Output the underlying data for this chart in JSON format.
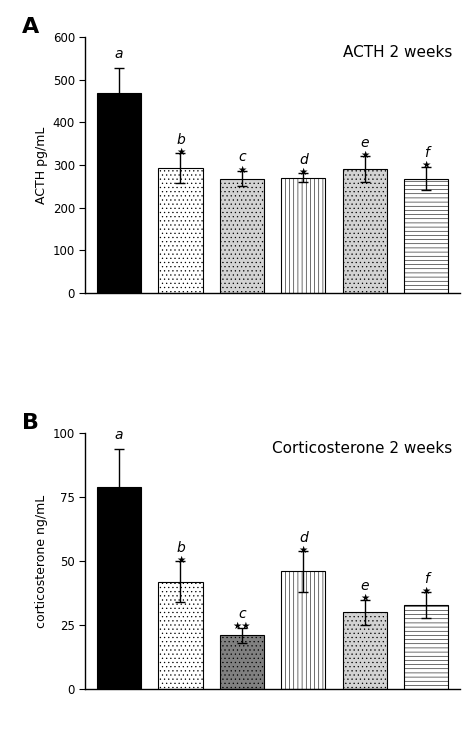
{
  "panel_A": {
    "title": "ACTH 2 weeks",
    "ylabel": "ACTH pg/mL",
    "ylim": [
      0,
      600
    ],
    "yticks": [
      0,
      100,
      200,
      300,
      400,
      500,
      600
    ],
    "values": [
      468,
      292,
      268,
      270,
      290,
      268
    ],
    "errors": [
      60,
      35,
      18,
      10,
      30,
      28
    ],
    "letters": [
      "a",
      "b",
      "c",
      "d",
      "e",
      "f"
    ],
    "stars": [
      "",
      "★",
      "★",
      "★",
      "★",
      "★"
    ],
    "star_double": [
      false,
      false,
      false,
      false,
      false,
      false
    ]
  },
  "panel_B": {
    "title": "Corticosterone 2 weeks",
    "ylabel": "corticosterone ng/mL",
    "ylim": [
      0,
      100
    ],
    "yticks": [
      0,
      25,
      50,
      75,
      100
    ],
    "values": [
      79,
      42,
      21,
      46,
      30,
      33
    ],
    "errors": [
      15,
      8,
      3,
      8,
      5,
      5
    ],
    "letters": [
      "a",
      "b",
      "c",
      "d",
      "e",
      "f"
    ],
    "stars": [
      "",
      "★",
      "★★",
      "★",
      "★",
      "★"
    ],
    "star_double": [
      false,
      false,
      true,
      false,
      false,
      false
    ]
  },
  "background_color": "#ffffff",
  "bar_width": 0.72
}
